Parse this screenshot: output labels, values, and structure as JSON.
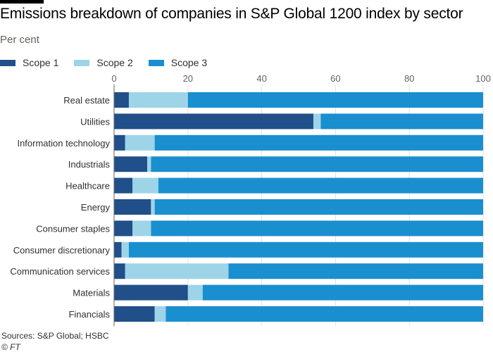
{
  "title": "Emissions breakdown of companies in S&P Global 1200 index by sector",
  "subtitle": "Per cent",
  "source": "Sources: S&P Global; HSBC",
  "credit": "© FT",
  "chart_data": {
    "type": "bar",
    "orientation": "horizontal",
    "stacked": true,
    "title": "Emissions breakdown of companies in S&P Global 1200 index by sector",
    "subtitle": "Per cent",
    "xlim": [
      0,
      100
    ],
    "xticks": [
      0,
      20,
      40,
      60,
      80,
      100
    ],
    "legend_position": "top-left",
    "grid": true,
    "categories": [
      "Real estate",
      "Utilities",
      "Information technology",
      "Industrials",
      "Healthcare",
      "Energy",
      "Consumer staples",
      "Consumer discretionary",
      "Communication services",
      "Materials",
      "Financials"
    ],
    "series": [
      {
        "name": "Scope 1",
        "color": "#204f8a",
        "values": [
          4,
          54,
          3,
          9,
          5,
          10,
          5,
          2,
          3,
          20,
          11
        ]
      },
      {
        "name": "Scope 2",
        "color": "#9dd4e8",
        "values": [
          16,
          2,
          8,
          1,
          7,
          1,
          5,
          2,
          28,
          4,
          3
        ]
      },
      {
        "name": "Scope 3",
        "color": "#1a8fcf",
        "values": [
          80,
          44,
          89,
          90,
          88,
          89,
          90,
          96,
          69,
          76,
          86
        ]
      }
    ]
  }
}
